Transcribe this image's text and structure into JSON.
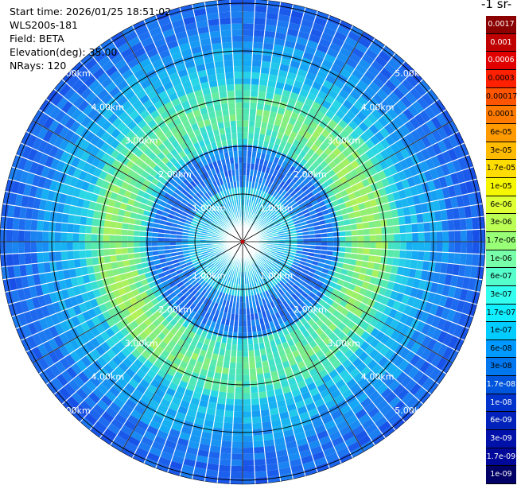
{
  "info": {
    "start_time": "Start time: 2026/01/25 18:51:02",
    "instrument": "WLS200s-181",
    "field": "Field: BETA",
    "elevation": "Elevation(deg): 35.00",
    "nrays": "NRays: 120"
  },
  "colorbar": {
    "title": "-1 sr-",
    "labels": [
      "0.0017",
      "0.001",
      "0.0006",
      "0.0003",
      "0.00017",
      "0.0001",
      "6e-05",
      "3e-05",
      "1.7e-05",
      "1e-05",
      "6e-06",
      "3e-06",
      "1.7e-06",
      "1e-06",
      "6e-07",
      "3e-07",
      "1.7e-07",
      "1e-07",
      "6e-08",
      "3e-08",
      "1.7e-08",
      "1e-08",
      "6e-09",
      "3e-09",
      "1.7e-09",
      "1e-09"
    ],
    "colors": [
      "#8b0000",
      "#c00000",
      "#e00000",
      "#ff2000",
      "#ff5500",
      "#ff7a00",
      "#ff9a00",
      "#ffbb00",
      "#ffdd00",
      "#f5f500",
      "#ddff33",
      "#bbff55",
      "#99ff77",
      "#77ffaa",
      "#55ffcc",
      "#33ffee",
      "#11eeff",
      "#00ccff",
      "#0099ff",
      "#0077ee",
      "#0055dd",
      "#0033cc",
      "#0022bb",
      "#0011aa",
      "#000899",
      "#000066"
    ]
  },
  "range_labels": [
    {
      "text": "1.00km"
    },
    {
      "text": "1.00km"
    },
    {
      "text": "1.00km"
    },
    {
      "text": "1.00km"
    },
    {
      "text": "2.00km"
    },
    {
      "text": "2.00km"
    },
    {
      "text": "2.00km"
    },
    {
      "text": "2.00km"
    },
    {
      "text": "3.00km"
    },
    {
      "text": "3.00km"
    },
    {
      "text": "3.00km"
    },
    {
      "text": "3.00km"
    },
    {
      "text": "4.00km"
    },
    {
      "text": "4.00km"
    },
    {
      "text": "4.00km"
    },
    {
      "text": "4.00km"
    },
    {
      "text": "5.00km"
    },
    {
      "text": "5.00km"
    },
    {
      "text": "5.00km"
    },
    {
      "text": "5.00km"
    }
  ]
}
